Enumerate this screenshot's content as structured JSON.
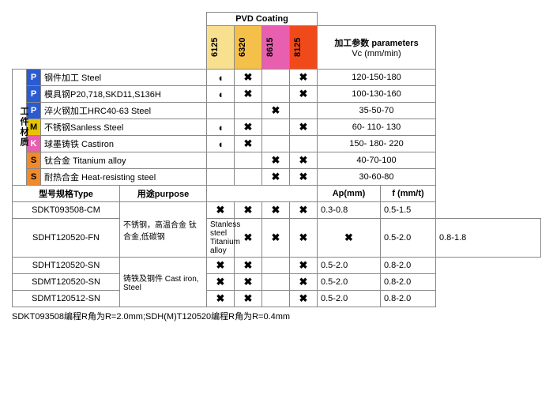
{
  "header": {
    "pvd": "PVD Coating",
    "params": "加工参数 parameters",
    "vc": "Vc (mm/min)",
    "grades": [
      "6125",
      "6320",
      "8615",
      "8125"
    ]
  },
  "vert_label": "工件材质",
  "material_rows": [
    {
      "tag": "P",
      "tc": "tag-P",
      "name": "钢件加工 Steel",
      "m": [
        "●",
        "✖",
        "",
        "✖"
      ],
      "vc": "120-150-180"
    },
    {
      "tag": "P",
      "tc": "tag-P",
      "name": "模具钢P20,718,SKD11,S136H",
      "m": [
        "●",
        "✖",
        "",
        "✖"
      ],
      "vc": "100-130-160"
    },
    {
      "tag": "P",
      "tc": "tag-P",
      "name": "淬火钢加工HRC40-63 Steel",
      "m": [
        "",
        "",
        "✖",
        ""
      ],
      "vc": "35-50-70"
    },
    {
      "tag": "M",
      "tc": "tag-M",
      "name": "不锈钢Sanless Steel",
      "m": [
        "●",
        "✖",
        "",
        "✖"
      ],
      "vc": "60- 110- 130"
    },
    {
      "tag": "K",
      "tc": "tag-K",
      "name": "球墨铸铁 Castiron",
      "m": [
        "●",
        "✖",
        "",
        ""
      ],
      "vc": "150- 180- 220"
    },
    {
      "tag": "S",
      "tc": "tag-S",
      "name": "钛合金 Titanium alloy",
      "m": [
        "",
        "",
        "✖",
        "✖"
      ],
      "vc": "40-70-100"
    },
    {
      "tag": "S",
      "tc": "tag-S",
      "name": "耐热合金 Heat-resisting steel",
      "m": [
        "",
        "",
        "✖",
        "✖"
      ],
      "vc": "30-60-80"
    }
  ],
  "spec_header": {
    "type": "型号规格Type",
    "purpose": "用途purpose",
    "ap": "Ap(mm)",
    "f": "f (mm/t)"
  },
  "spec_rows": [
    {
      "type": "SDKT093508-CM",
      "purpose": "不锈钢，高温合金 钛合金,低碳钢",
      "m": [
        "✖",
        "✖",
        "✖",
        "✖"
      ],
      "ap": "0.3-0.8",
      "f": "0.5-1.5",
      "pspan": 2
    },
    {
      "type": "SDHT120520-FN",
      "purpose": "Stanless steel Titanium alloy",
      "m": [
        "✖",
        "✖",
        "✖",
        "✖"
      ],
      "ap": "0.5-2.0",
      "f": "0.8-1.8"
    },
    {
      "type": "SDHT120520-SN",
      "purpose": "铸铁及钢件 Cast iron, Steel",
      "m": [
        "✖",
        "✖",
        "",
        "✖"
      ],
      "ap": "0.5-2.0",
      "f": "0.8-2.0",
      "pspan": 3
    },
    {
      "type": "SDMT120520-SN",
      "m": [
        "✖",
        "✖",
        "",
        "✖"
      ],
      "ap": "0.5-2.0",
      "f": "0.8-2.0"
    },
    {
      "type": "SDMT120512-SN",
      "m": [
        "✖",
        "✖",
        "",
        "✖"
      ],
      "ap": "0.5-2.0",
      "f": "0.8-2.0"
    }
  ],
  "footnote": "SDKT093508编程R角为R=2.0mm;SDH(M)T120520编程R角为R=0.4mm"
}
